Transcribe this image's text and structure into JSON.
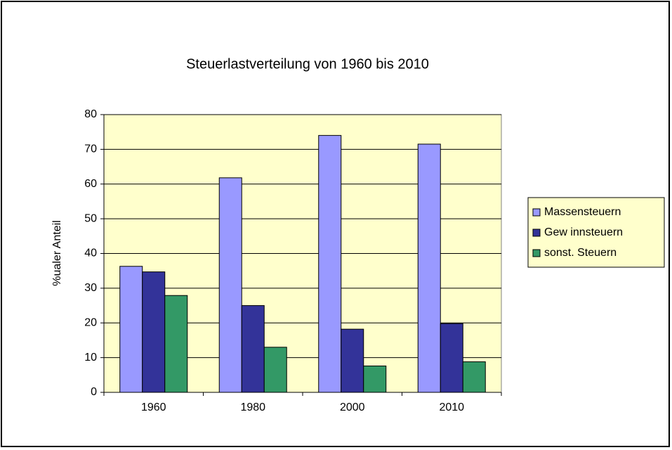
{
  "chart_data": {
    "type": "bar",
    "title": "Steuerlastverteilung von 1960 bis 2010",
    "y_label": "%ualer Anteil",
    "categories": [
      "1960",
      "1980",
      "2000",
      "2010"
    ],
    "series": [
      {
        "name": "Massensteuern",
        "color": "#9999ff",
        "values": [
          36.3,
          61.8,
          74,
          71.5
        ]
      },
      {
        "name": "Gew innsteuern",
        "color": "#333399",
        "values": [
          34.7,
          25,
          18.2,
          19.8
        ]
      },
      {
        "name": "sonst. Steuern",
        "color": "#339966",
        "values": [
          27.9,
          13,
          7.6,
          8.8
        ]
      }
    ],
    "ylim": [
      0,
      80
    ],
    "yticks": [
      0,
      10,
      20,
      30,
      40,
      50,
      60,
      70,
      80
    ],
    "grid": true,
    "legend": "right",
    "plot_background": "#ffffcc"
  }
}
